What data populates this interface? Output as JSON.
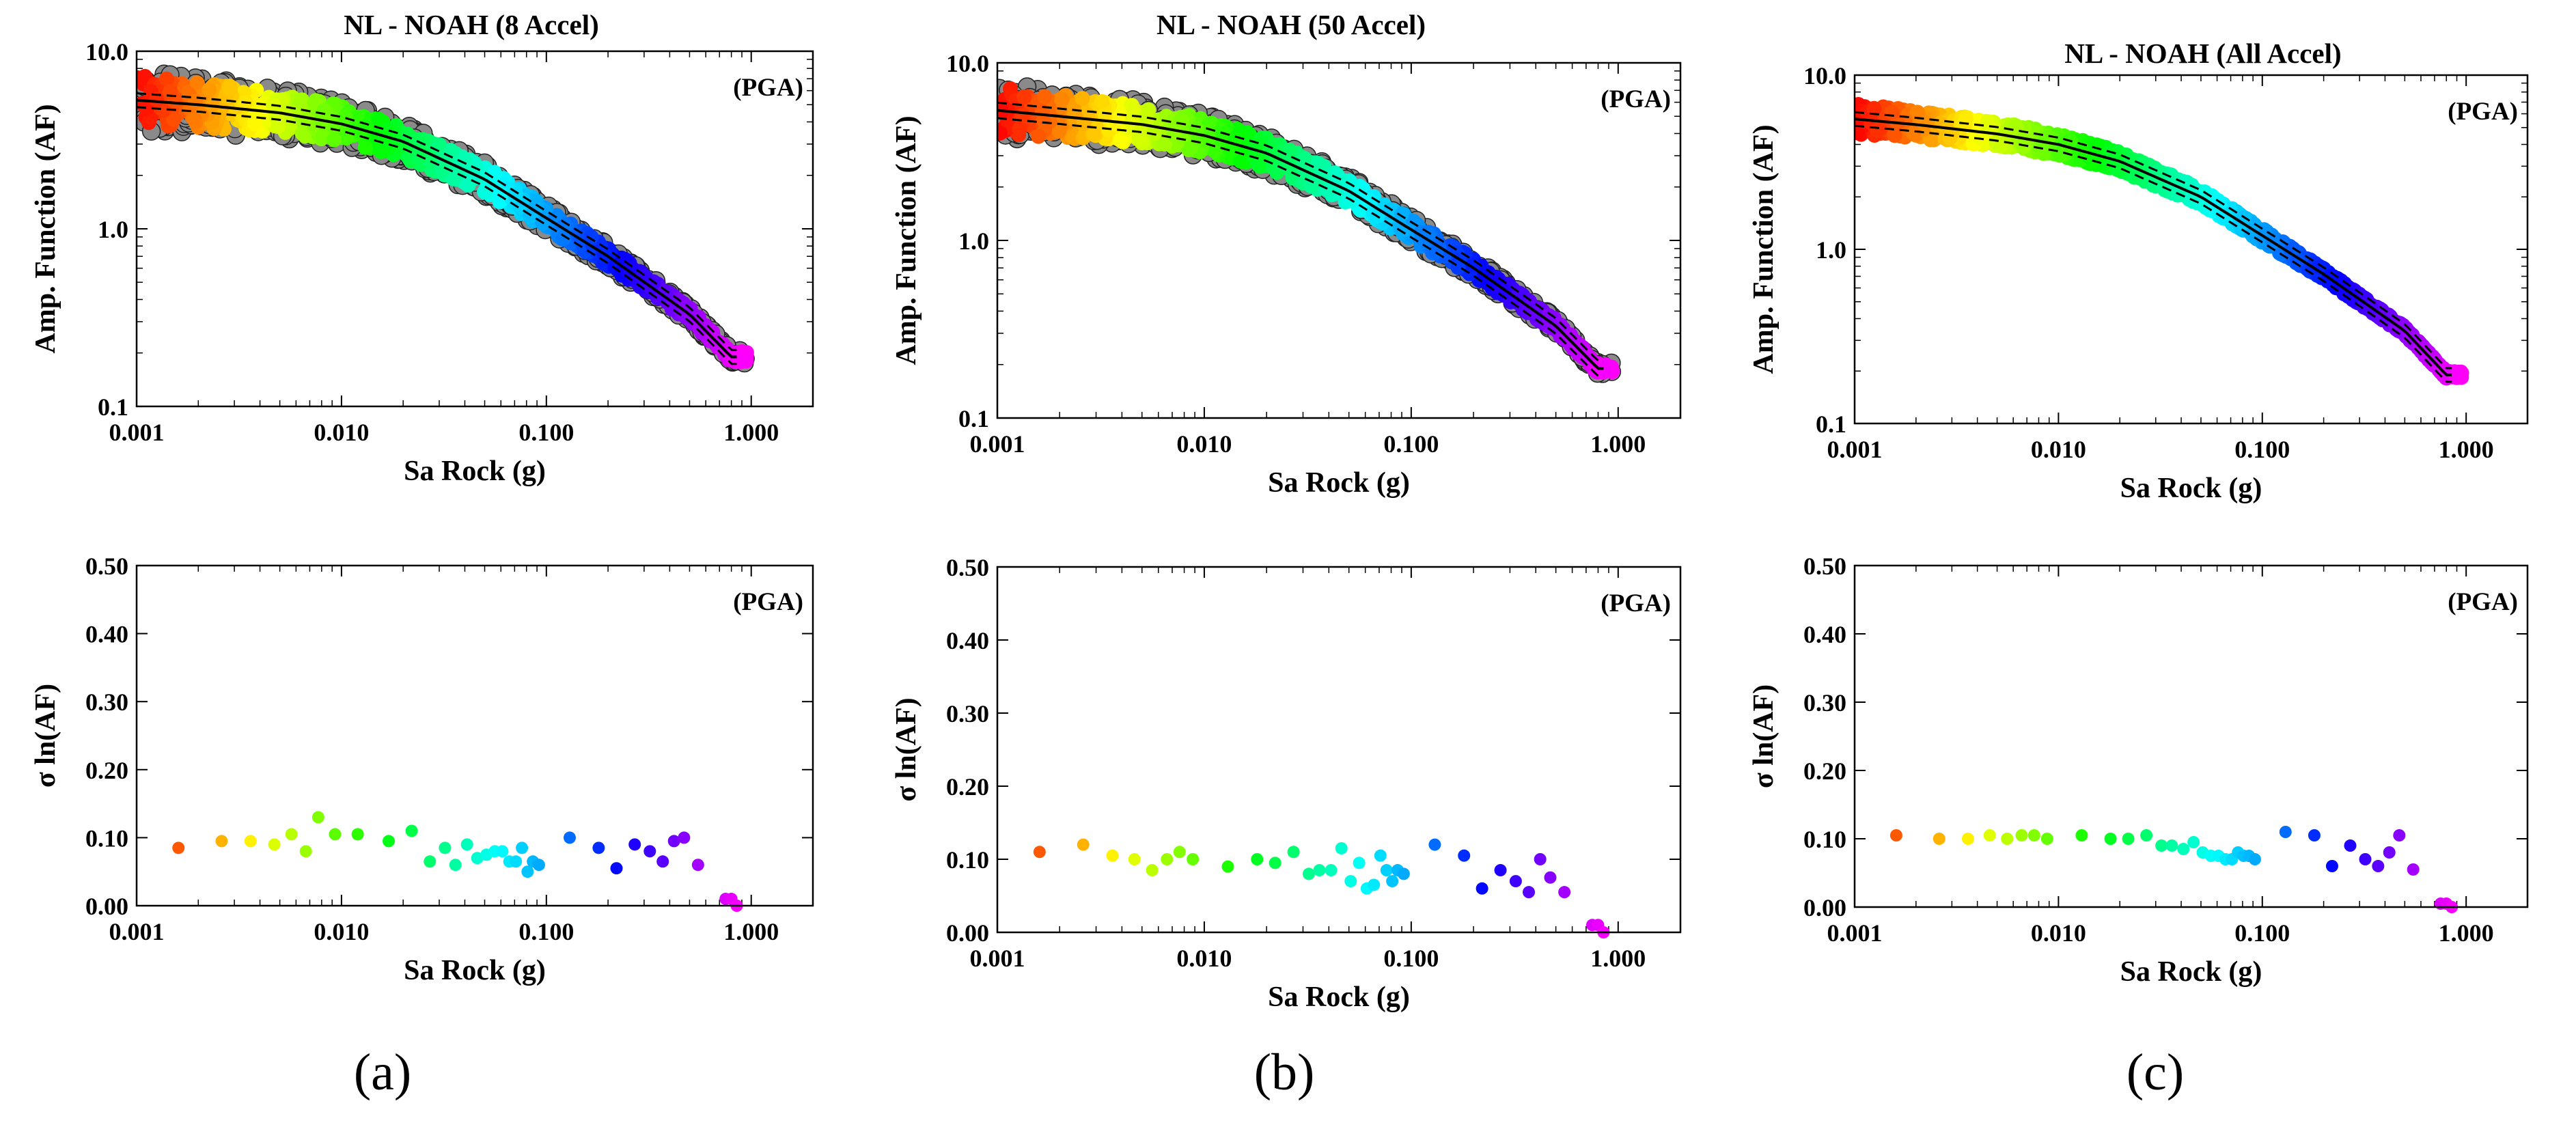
{
  "chart_data": [
    {
      "type": "scatter",
      "panel": "a",
      "title": "NL - NOAH (8 Accel)",
      "xlabel": "Sa Rock (g)",
      "ylabel": "Amp. Function (AF)",
      "annotation": "(PGA)",
      "xscale": "log",
      "yscale": "log",
      "xlim": [
        0.001,
        2.0
      ],
      "ylim": [
        0.1,
        10.0
      ],
      "xticks": [
        0.001,
        0.01,
        0.1,
        1.0
      ],
      "xtick_labels": [
        "0.001",
        "0.010",
        "0.100",
        "1.000"
      ],
      "yticks": [
        0.1,
        1.0,
        10.0
      ],
      "ytick_labels": [
        "0.1",
        "1.0",
        "10.0"
      ],
      "median_x": [
        0.001,
        0.002,
        0.005,
        0.01,
        0.02,
        0.05,
        0.1,
        0.2,
        0.5,
        0.8
      ],
      "median_y": [
        5.3,
        5.0,
        4.5,
        3.9,
        3.1,
        1.9,
        1.15,
        0.7,
        0.33,
        0.19
      ],
      "sigma": 0.09,
      "scatter_spread": 0.35,
      "gray_points": true
    },
    {
      "type": "scatter",
      "panel": "b",
      "title": "NL - NOAH (50 Accel)",
      "xlabel": "Sa Rock (g)",
      "ylabel": "Amp. Function (AF)",
      "annotation": "(PGA)",
      "xscale": "log",
      "yscale": "log",
      "xlim": [
        0.001,
        2.0
      ],
      "ylim": [
        0.1,
        10.0
      ],
      "xticks": [
        0.001,
        0.01,
        0.1,
        1.0
      ],
      "xtick_labels": [
        "0.001",
        "0.010",
        "0.100",
        "1.000"
      ],
      "yticks": [
        0.1,
        1.0,
        10.0
      ],
      "ytick_labels": [
        "0.1",
        "1.0",
        "10.0"
      ],
      "median_x": [
        0.001,
        0.002,
        0.005,
        0.01,
        0.02,
        0.05,
        0.1,
        0.2,
        0.5,
        0.8
      ],
      "median_y": [
        5.4,
        5.0,
        4.5,
        3.9,
        3.1,
        1.9,
        1.15,
        0.7,
        0.33,
        0.19
      ],
      "sigma": 0.1,
      "scatter_spread": 0.33,
      "gray_points": true
    },
    {
      "type": "scatter",
      "panel": "c",
      "title": "NL - NOAH (All Accel)",
      "xlabel": "Sa Rock (g)",
      "ylabel": "Amp. Function (AF)",
      "annotation": "(PGA)",
      "xscale": "log",
      "yscale": "log",
      "xlim": [
        0.001,
        2.0
      ],
      "ylim": [
        0.1,
        10.0
      ],
      "xticks": [
        0.001,
        0.01,
        0.1,
        1.0
      ],
      "xtick_labels": [
        "0.001",
        "0.010",
        "0.100",
        "1.000"
      ],
      "yticks": [
        0.1,
        1.0,
        10.0
      ],
      "ytick_labels": [
        "0.1",
        "1.0",
        "10.0"
      ],
      "median_x": [
        0.001,
        0.002,
        0.005,
        0.01,
        0.02,
        0.05,
        0.1,
        0.2,
        0.5,
        0.8
      ],
      "median_y": [
        5.6,
        5.2,
        4.6,
        4.0,
        3.2,
        2.0,
        1.2,
        0.72,
        0.34,
        0.19
      ],
      "sigma": 0.09,
      "scatter_spread": 0.22,
      "gray_points": false
    },
    {
      "type": "scatter",
      "panel": "a",
      "title": "",
      "xlabel": "Sa Rock (g)",
      "ylabel": "σ ln(AF)",
      "annotation": "(PGA)",
      "xscale": "log",
      "yscale": "linear",
      "xlim": [
        0.001,
        2.0
      ],
      "ylim": [
        0.0,
        0.5
      ],
      "xticks": [
        0.001,
        0.01,
        0.1,
        1.0
      ],
      "xtick_labels": [
        "0.001",
        "0.010",
        "0.100",
        "1.000"
      ],
      "yticks": [
        0.0,
        0.1,
        0.2,
        0.3,
        0.4,
        0.5
      ],
      "ytick_labels": [
        "0.00",
        "0.10",
        "0.20",
        "0.30",
        "0.40",
        "0.50"
      ],
      "x": [
        0.0016,
        0.0026,
        0.0036,
        0.0047,
        0.0057,
        0.0067,
        0.0077,
        0.0093,
        0.012,
        0.017,
        0.022,
        0.027,
        0.032,
        0.036,
        0.041,
        0.046,
        0.051,
        0.056,
        0.061,
        0.066,
        0.071,
        0.076,
        0.081,
        0.086,
        0.092,
        0.13,
        0.18,
        0.22,
        0.27,
        0.32,
        0.37,
        0.42,
        0.47,
        0.55,
        0.75,
        0.8,
        0.85
      ],
      "y": [
        0.085,
        0.095,
        0.095,
        0.09,
        0.105,
        0.08,
        0.13,
        0.105,
        0.105,
        0.095,
        0.11,
        0.065,
        0.085,
        0.06,
        0.09,
        0.07,
        0.075,
        0.08,
        0.08,
        0.065,
        0.065,
        0.085,
        0.05,
        0.065,
        0.06,
        0.1,
        0.085,
        0.055,
        0.09,
        0.08,
        0.065,
        0.095,
        0.1,
        0.06,
        0.01,
        0.01,
        0.0
      ]
    },
    {
      "type": "scatter",
      "panel": "b",
      "title": "",
      "xlabel": "Sa Rock (g)",
      "ylabel": "σ ln(AF)",
      "annotation": "(PGA)",
      "xscale": "log",
      "yscale": "linear",
      "xlim": [
        0.001,
        2.0
      ],
      "ylim": [
        0.0,
        0.5
      ],
      "xticks": [
        0.001,
        0.01,
        0.1,
        1.0
      ],
      "xtick_labels": [
        "0.001",
        "0.010",
        "0.100",
        "1.000"
      ],
      "yticks": [
        0.0,
        0.1,
        0.2,
        0.3,
        0.4,
        0.5
      ],
      "ytick_labels": [
        "0.00",
        "0.10",
        "0.20",
        "0.30",
        "0.40",
        "0.50"
      ],
      "x": [
        0.0016,
        0.0026,
        0.0036,
        0.0046,
        0.0056,
        0.0066,
        0.0076,
        0.0088,
        0.013,
        0.018,
        0.022,
        0.027,
        0.032,
        0.036,
        0.041,
        0.046,
        0.051,
        0.056,
        0.061,
        0.066,
        0.071,
        0.076,
        0.081,
        0.086,
        0.092,
        0.13,
        0.18,
        0.22,
        0.27,
        0.32,
        0.37,
        0.42,
        0.47,
        0.55,
        0.75,
        0.8,
        0.85
      ],
      "y": [
        0.11,
        0.12,
        0.105,
        0.1,
        0.085,
        0.1,
        0.11,
        0.1,
        0.09,
        0.1,
        0.095,
        0.11,
        0.08,
        0.085,
        0.085,
        0.115,
        0.07,
        0.095,
        0.06,
        0.065,
        0.105,
        0.085,
        0.07,
        0.085,
        0.08,
        0.12,
        0.105,
        0.06,
        0.085,
        0.07,
        0.055,
        0.1,
        0.075,
        0.055,
        0.01,
        0.01,
        0.0
      ]
    },
    {
      "type": "scatter",
      "panel": "c",
      "title": "",
      "xlabel": "Sa Rock (g)",
      "ylabel": "σ ln(AF)",
      "annotation": "(PGA)",
      "xscale": "log",
      "yscale": "linear",
      "xlim": [
        0.001,
        2.0
      ],
      "ylim": [
        0.0,
        0.5
      ],
      "xticks": [
        0.001,
        0.01,
        0.1,
        1.0
      ],
      "xtick_labels": [
        "0.001",
        "0.010",
        "0.100",
        "1.000"
      ],
      "yticks": [
        0.0,
        0.1,
        0.2,
        0.3,
        0.4,
        0.5
      ],
      "ytick_labels": [
        "0.00",
        "0.10",
        "0.20",
        "0.30",
        "0.40",
        "0.50"
      ],
      "x": [
        0.0016,
        0.0026,
        0.0036,
        0.0046,
        0.0056,
        0.0066,
        0.0076,
        0.0088,
        0.013,
        0.018,
        0.022,
        0.027,
        0.032,
        0.036,
        0.041,
        0.046,
        0.051,
        0.056,
        0.061,
        0.066,
        0.071,
        0.076,
        0.081,
        0.086,
        0.092,
        0.13,
        0.18,
        0.22,
        0.27,
        0.32,
        0.37,
        0.42,
        0.47,
        0.55,
        0.75,
        0.8,
        0.85
      ],
      "y": [
        0.105,
        0.1,
        0.1,
        0.105,
        0.1,
        0.105,
        0.105,
        0.1,
        0.105,
        0.1,
        0.1,
        0.105,
        0.09,
        0.09,
        0.085,
        0.095,
        0.08,
        0.075,
        0.075,
        0.07,
        0.07,
        0.08,
        0.075,
        0.075,
        0.07,
        0.11,
        0.105,
        0.06,
        0.09,
        0.07,
        0.06,
        0.08,
        0.105,
        0.055,
        0.005,
        0.005,
        0.0
      ]
    }
  ],
  "panel_labels": [
    "(a)",
    "(b)",
    "(c)"
  ]
}
